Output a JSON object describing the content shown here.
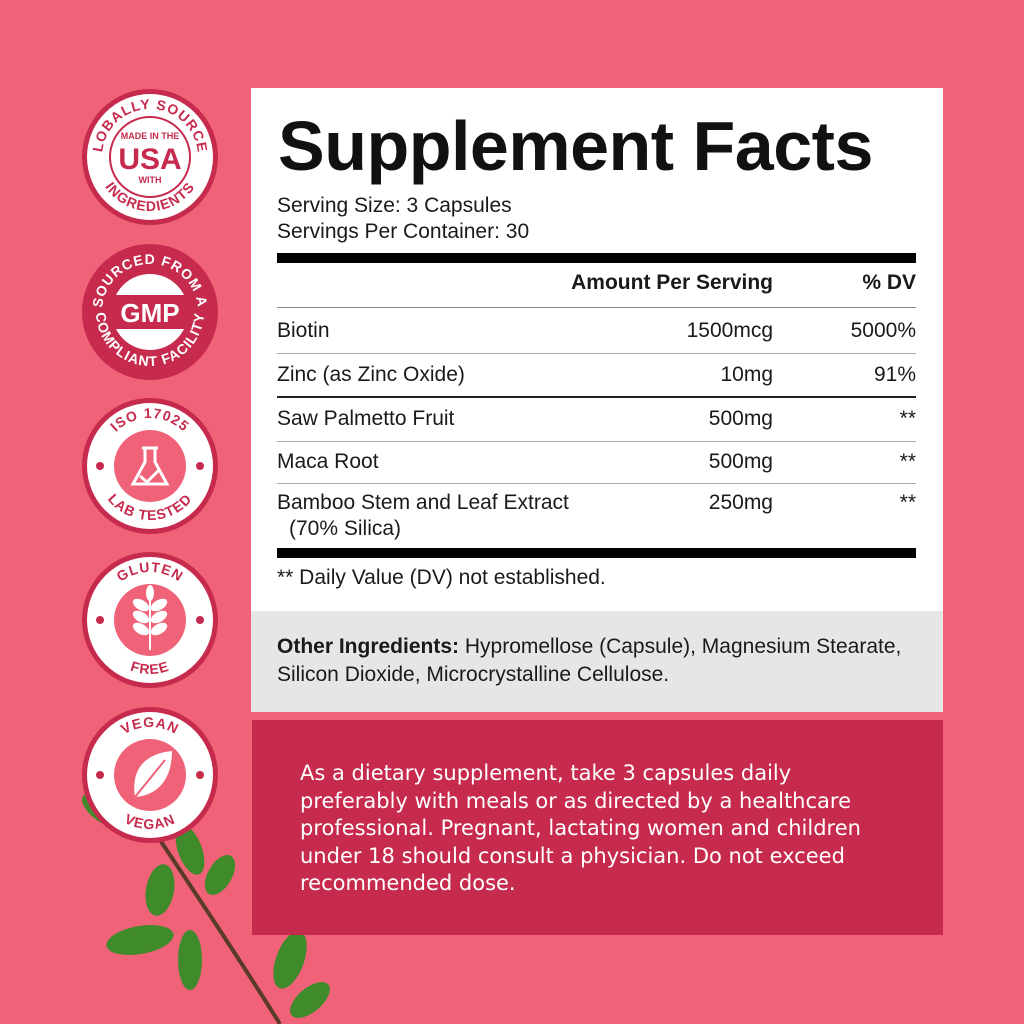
{
  "colors": {
    "background": "#f06277",
    "accent": "#c62a4c",
    "panel": "#ffffff",
    "other_bg": "#e6e6e6"
  },
  "badges": [
    {
      "top": "GLOBALLY SOURCED",
      "center_small": "MADE IN THE",
      "center_big": "USA",
      "center_small2": "WITH",
      "bottom": "INGREDIENTS"
    },
    {
      "top": "SOURCED FROM A",
      "center_big": "GMP",
      "bottom": "COMPLIANT FACILITY"
    },
    {
      "top": "ISO 17025",
      "bottom": "LAB TESTED",
      "icon": "flask-check-icon"
    },
    {
      "top": "GLUTEN",
      "bottom": "FREE",
      "icon": "wheat-icon"
    },
    {
      "top": "VEGAN",
      "bottom": "VEGAN",
      "icon": "leaf-icon"
    }
  ],
  "facts": {
    "title": "Supplement Facts",
    "serving_size": "Serving Size: 3 Capsules",
    "servings_per_container": "Servings Per Container: 30",
    "header_amount": "Amount Per Serving",
    "header_dv": "% DV",
    "rows": [
      {
        "name": "Biotin",
        "amount": "1500mcg",
        "dv": "5000%"
      },
      {
        "name": "Zinc (as Zinc Oxide)",
        "amount": "10mg",
        "dv": "91%"
      },
      {
        "name": "Saw Palmetto Fruit",
        "amount": "500mg",
        "dv": "**"
      },
      {
        "name": "Maca Root",
        "amount": "500mg",
        "dv": "**"
      },
      {
        "name": "Bamboo Stem and Leaf Extract",
        "name2": "(70% Silica)",
        "amount": "250mg",
        "dv": "**"
      }
    ],
    "footnote": "** Daily Value (DV) not established."
  },
  "other": {
    "label": "Other Ingredients:",
    "text": " Hypromellose (Capsule), Magnesium Stearate, Silicon Dioxide, Microcrystalline Cellulose."
  },
  "directions": "As a dietary supplement, take 3 capsules daily preferably with meals or as directed by a healthcare professional. Pregnant, lactating women and children under 18 should consult a physician. Do not exceed recommended dose."
}
